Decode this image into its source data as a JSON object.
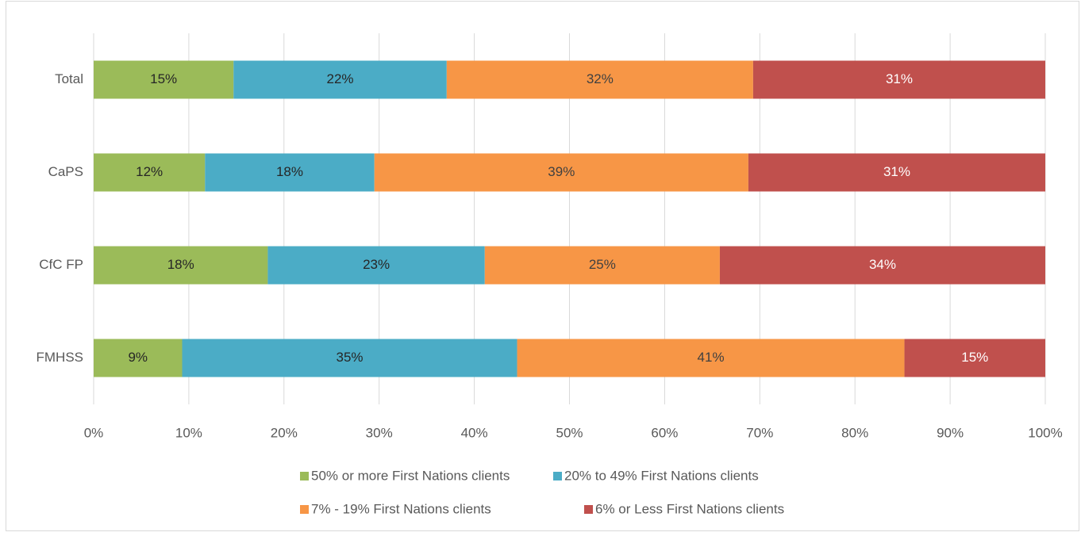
{
  "chart_data": {
    "type": "stacked_bar_horizontal",
    "categories": [
      "Total",
      "CaPS",
      "CfC FP",
      "FMHSS"
    ],
    "series": [
      {
        "name": "50% or more First Nations clients",
        "color": "#9bbb59",
        "values": [
          14.7,
          11.7,
          18.3,
          9.3
        ],
        "value_labels": [
          "15%",
          "12%",
          "18%",
          "9%"
        ]
      },
      {
        "name": "20% to 49% First Nations clients",
        "color": "#4bacc6",
        "values": [
          22.4,
          17.8,
          22.8,
          35.2
        ],
        "value_labels": [
          "22%",
          "18%",
          "23%",
          "35%"
        ]
      },
      {
        "name": "7% - 19% First Nations clients",
        "color": "#f79646",
        "values": [
          32.2,
          39.3,
          24.7,
          40.7
        ],
        "value_labels": [
          "32%",
          "39%",
          "25%",
          "41%"
        ]
      },
      {
        "name": "6% or Less First Nations clients",
        "color": "#c0504d",
        "values": [
          30.7,
          31.2,
          34.2,
          14.8
        ],
        "value_labels": [
          "31%",
          "31%",
          "34%",
          "15%"
        ]
      }
    ],
    "xlim": [
      0,
      100
    ],
    "xticks": [
      {
        "value": 0,
        "label": "0%"
      },
      {
        "value": 10,
        "label": "10%"
      },
      {
        "value": 20,
        "label": "20%"
      },
      {
        "value": 30,
        "label": "30%"
      },
      {
        "value": 40,
        "label": "40%"
      },
      {
        "value": 50,
        "label": "50%"
      },
      {
        "value": 60,
        "label": "60%"
      },
      {
        "value": 70,
        "label": "70%"
      },
      {
        "value": 80,
        "label": "80%"
      },
      {
        "value": 90,
        "label": "90%"
      },
      {
        "value": 100,
        "label": "100%"
      }
    ],
    "grid": true,
    "legend": "bottom"
  }
}
